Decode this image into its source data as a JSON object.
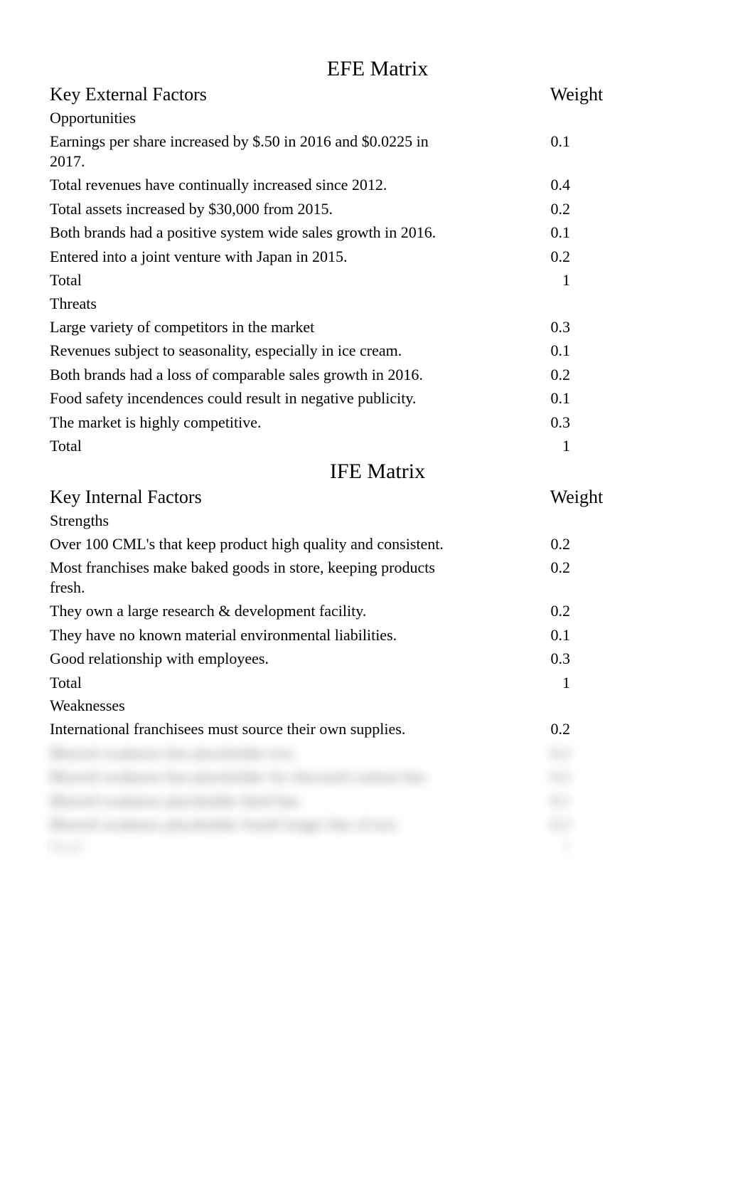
{
  "efe": {
    "title": "EFE Matrix",
    "factors_header": "Key External Factors",
    "weight_header": "Weight",
    "opportunities_label": "Opportunities",
    "opportunities": [
      {
        "factor": "Earnings per share increased by $.50 in 2016 and $0.0225 in 2017.",
        "weight": "0.1"
      },
      {
        "factor": "Total revenues have continually increased since 2012.",
        "weight": "0.4"
      },
      {
        "factor": "Total assets increased by $30,000 from 2015.",
        "weight": "0.2"
      },
      {
        "factor": "Both brands had a positive system wide sales growth in 2016.",
        "weight": "0.1"
      },
      {
        "factor": "Entered into a joint venture with Japan in 2015.",
        "weight": "0.2"
      }
    ],
    "opportunities_total_label": "Total",
    "opportunities_total": "1",
    "threats_label": "Threats",
    "threats": [
      {
        "factor": "Large variety of competitors in the market",
        "weight": "0.3"
      },
      {
        "factor": "Revenues subject to seasonality, especially in ice cream.",
        "weight": "0.1"
      },
      {
        "factor": "Both brands had a loss of comparable sales growth in 2016.",
        "weight": "0.2"
      },
      {
        "factor": "Food safety incendences could result in negative publicity.",
        "weight": "0.1"
      },
      {
        "factor": "The market is highly competitive.",
        "weight": "0.3"
      }
    ],
    "threats_total_label": "Total",
    "threats_total": "1"
  },
  "ife": {
    "title": "IFE Matrix",
    "factors_header": "Key Internal Factors",
    "weight_header": "Weight",
    "strengths_label": "Strengths",
    "strengths": [
      {
        "factor": "Over 100 CML's that keep product high quality and consistent.",
        "weight": "0.2"
      },
      {
        "factor": "Most franchises make baked goods in store, keeping products fresh.",
        "weight": "0.2"
      },
      {
        "factor": "They own a large research & development facility.",
        "weight": "0.2"
      },
      {
        "factor": "They have no known material environmental liabilities.",
        "weight": "0.1"
      },
      {
        "factor": "Good relationship with employees.",
        "weight": "0.3"
      }
    ],
    "strengths_total_label": "Total",
    "strengths_total": "1",
    "weaknesses_label": "Weaknesses",
    "weaknesses": [
      {
        "factor": "International franchisees must source their own supplies.",
        "weight": "0.2"
      }
    ]
  },
  "colors": {
    "text": "#000000",
    "background": "#ffffff"
  },
  "fonts": {
    "family": "Times New Roman",
    "title_size_pt": 22,
    "header_size_pt": 20,
    "body_size_pt": 17
  }
}
